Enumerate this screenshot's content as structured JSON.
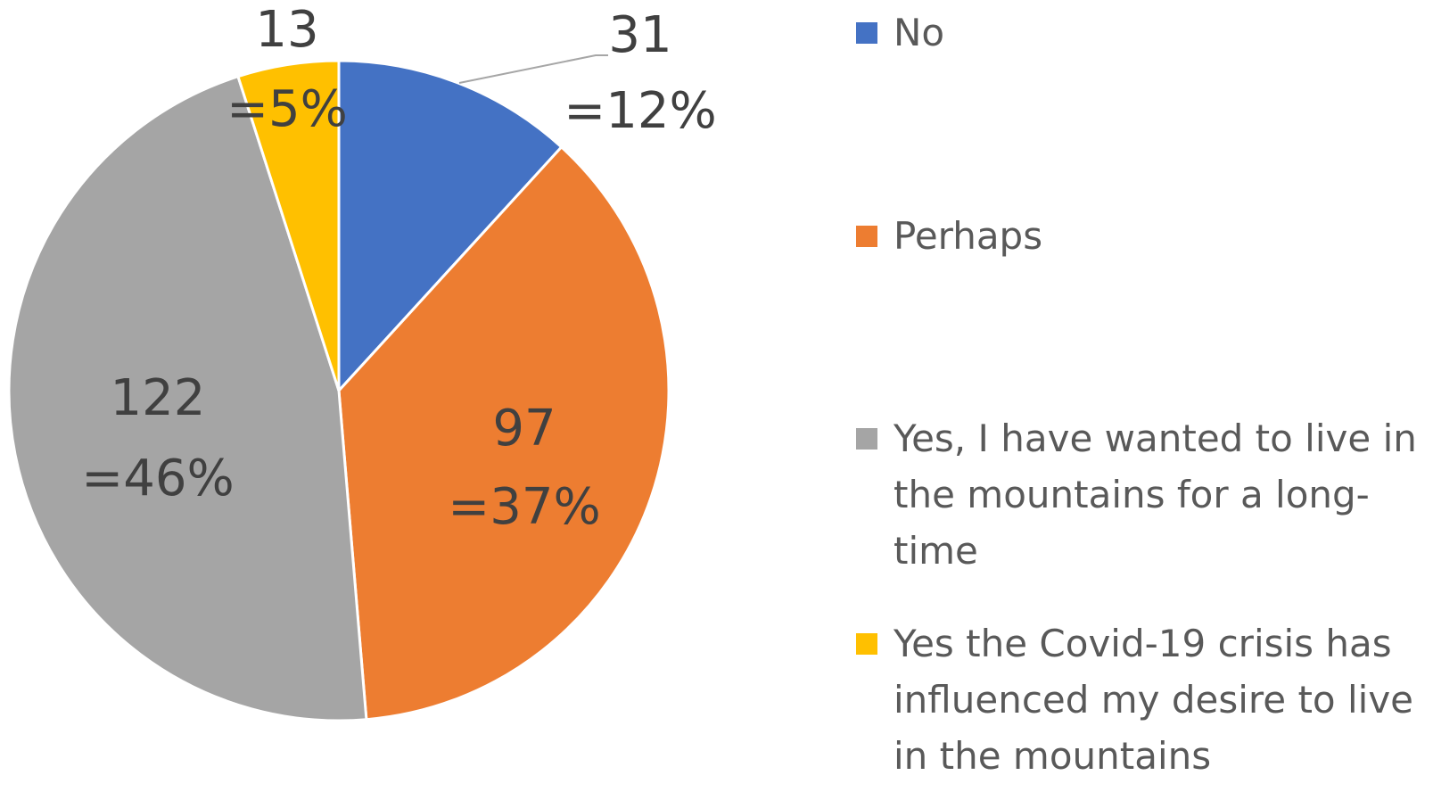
{
  "chart_data": {
    "type": "pie",
    "categories": [
      "No",
      "Perhaps",
      "Yes, I have wanted to live in the mountains for a long-time",
      "Yes the Covid-19 crisis has influenced my desire to live in the mountains"
    ],
    "values": [
      31,
      97,
      122,
      13
    ],
    "percent_values": [
      12,
      37,
      46,
      5
    ],
    "percent_labels": [
      "=12%",
      "=37%",
      "=46%",
      "=5%"
    ],
    "colors": [
      "#4472c4",
      "#ed7d31",
      "#a5a5a5",
      "#ffc000"
    ],
    "legend": "right"
  }
}
